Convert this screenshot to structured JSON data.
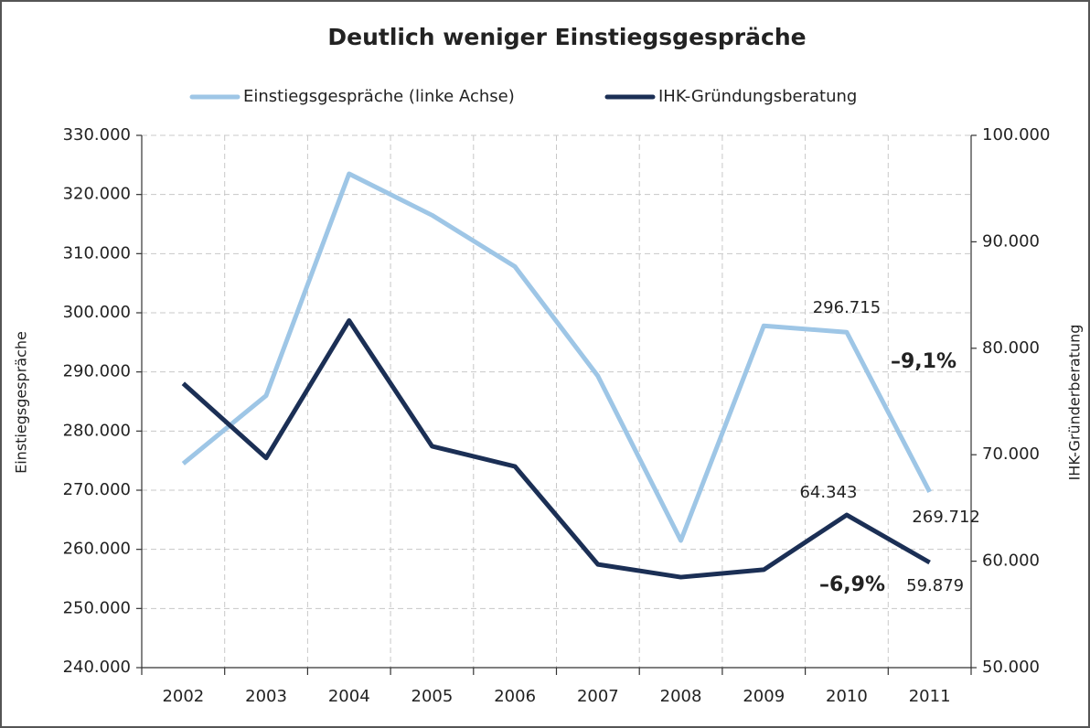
{
  "chart_data": {
    "type": "line",
    "title": "Deutlich weniger Einstiegsgespräche",
    "categories": [
      "2002",
      "2003",
      "2004",
      "2005",
      "2006",
      "2007",
      "2008",
      "2009",
      "2010",
      "2011"
    ],
    "y_label": "Einstiegsgespräche",
    "y2_label": "IHK-Gründerberatung",
    "ylim": [
      240000,
      330000
    ],
    "yticks": [
      {
        "value": 240000,
        "label": "240.000"
      },
      {
        "value": 250000,
        "label": "250.000"
      },
      {
        "value": 260000,
        "label": "260.000"
      },
      {
        "value": 270000,
        "label": "270.000"
      },
      {
        "value": 280000,
        "label": "280.000"
      },
      {
        "value": 290000,
        "label": "290.000"
      },
      {
        "value": 300000,
        "label": "300.000"
      },
      {
        "value": 310000,
        "label": "310.000"
      },
      {
        "value": 320000,
        "label": "320.000"
      },
      {
        "value": 330000,
        "label": "330.000"
      }
    ],
    "y2lim": [
      50000,
      100000
    ],
    "y2ticks": [
      {
        "value": 50000,
        "label": "50.000"
      },
      {
        "value": 60000,
        "label": "60.000"
      },
      {
        "value": 70000,
        "label": "70.000"
      },
      {
        "value": 80000,
        "label": "80.000"
      },
      {
        "value": 90000,
        "label": "90.000"
      },
      {
        "value": 100000,
        "label": "100.000"
      }
    ],
    "grid": true,
    "legend": "top",
    "series": [
      {
        "name": "Einstiegsgespräche (linke Achse)",
        "color": "#9ec6e6",
        "axis": "y",
        "values": [
          274500,
          286000,
          323500,
          316500,
          307800,
          289300,
          261500,
          297800,
          296715,
          269712
        ],
        "value_labels": [
          null,
          null,
          null,
          null,
          null,
          null,
          null,
          null,
          "296.715",
          "269.712"
        ]
      },
      {
        "name": "IHK-Gründungsberatung",
        "color": "#1b2f55",
        "axis": "y2",
        "values": [
          76700,
          69700,
          82600,
          70800,
          68900,
          59700,
          58500,
          59200,
          64343,
          59879
        ],
        "value_labels": [
          null,
          null,
          null,
          null,
          null,
          null,
          null,
          null,
          "64.343",
          "59.879"
        ]
      }
    ],
    "annotations": [
      "–9,1%",
      "–6,9%"
    ]
  }
}
